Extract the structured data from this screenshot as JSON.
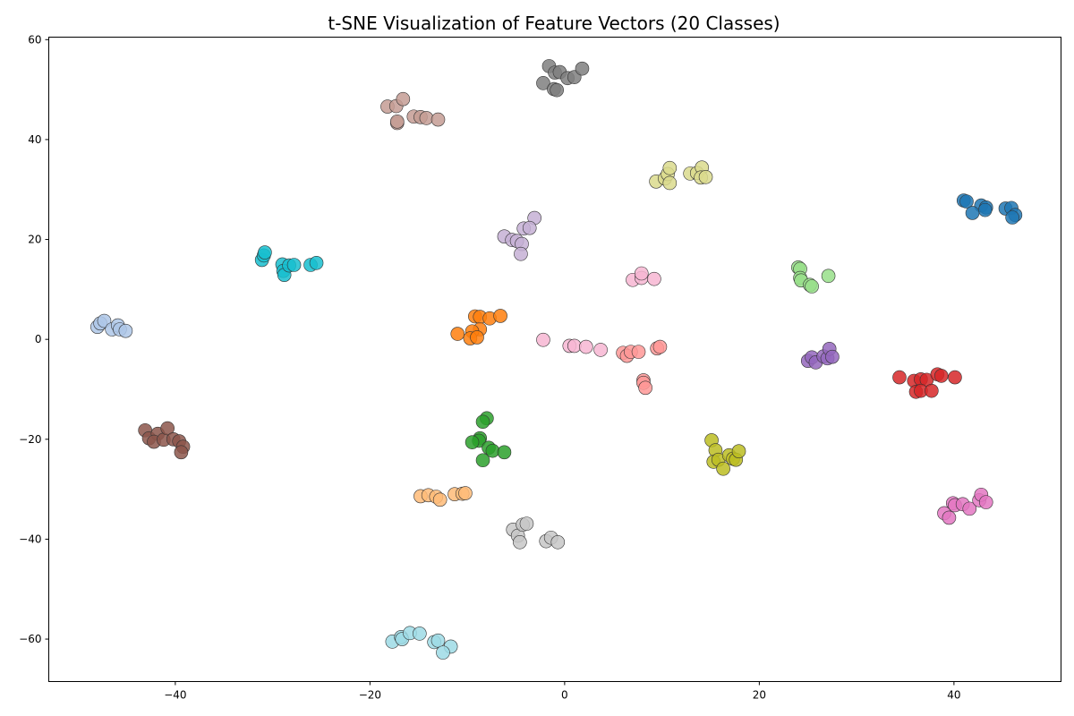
{
  "chart_data": {
    "type": "scatter",
    "title": "t-SNE Visualization of Feature Vectors (20 Classes)",
    "xlabel": "",
    "ylabel": "",
    "xlim": [
      -53,
      51
    ],
    "ylim": [
      -68.5,
      60.5
    ],
    "xticks": [
      -40,
      -20,
      0,
      20,
      40
    ],
    "yticks": [
      -60,
      -40,
      -20,
      0,
      20,
      40,
      60
    ],
    "grid": false,
    "legend": "none",
    "series": [
      {
        "color": "#1f77b4",
        "points": [
          [
            41.0,
            27.8
          ],
          [
            41.3,
            27.6
          ],
          [
            42.8,
            26.8
          ],
          [
            43.3,
            26.4
          ],
          [
            43.2,
            25.9
          ],
          [
            41.9,
            25.3
          ],
          [
            45.3,
            26.2
          ],
          [
            45.9,
            26.3
          ],
          [
            46.3,
            24.9
          ],
          [
            46.0,
            24.4
          ]
        ]
      },
      {
        "color": "#aec7e8",
        "points": [
          [
            -48.0,
            2.5
          ],
          [
            -47.7,
            3.2
          ],
          [
            -47.3,
            3.7
          ],
          [
            -46.5,
            2.0
          ],
          [
            -45.9,
            2.8
          ],
          [
            -45.7,
            2.0
          ],
          [
            -45.1,
            1.7
          ]
        ]
      },
      {
        "color": "#ff7f0e",
        "points": [
          [
            -9.2,
            4.6
          ],
          [
            -8.7,
            4.5
          ],
          [
            -7.7,
            4.2
          ],
          [
            -6.6,
            4.7
          ],
          [
            -8.7,
            2.0
          ],
          [
            -9.5,
            1.6
          ],
          [
            -11.0,
            1.1
          ],
          [
            -9.7,
            0.2
          ],
          [
            -9.0,
            0.4
          ]
        ]
      },
      {
        "color": "#ffbb78",
        "points": [
          [
            -14.8,
            -31.4
          ],
          [
            -14.0,
            -31.2
          ],
          [
            -13.2,
            -31.5
          ],
          [
            -12.8,
            -32.1
          ],
          [
            -11.3,
            -31.0
          ],
          [
            -10.5,
            -30.9
          ],
          [
            -10.2,
            -30.8
          ]
        ]
      },
      {
        "color": "#2ca02c",
        "points": [
          [
            -8.0,
            -15.8
          ],
          [
            -8.4,
            -16.5
          ],
          [
            -8.7,
            -19.8
          ],
          [
            -8.8,
            -20.3
          ],
          [
            -9.5,
            -20.6
          ],
          [
            -7.8,
            -21.7
          ],
          [
            -7.4,
            -22.3
          ],
          [
            -6.2,
            -22.6
          ],
          [
            -8.4,
            -24.2
          ]
        ]
      },
      {
        "color": "#98df8a",
        "points": [
          [
            24.0,
            14.4
          ],
          [
            24.2,
            14.1
          ],
          [
            24.2,
            12.3
          ],
          [
            24.3,
            11.8
          ],
          [
            25.2,
            10.9
          ],
          [
            25.4,
            10.6
          ],
          [
            27.1,
            12.7
          ]
        ]
      },
      {
        "color": "#d62728",
        "points": [
          [
            34.4,
            -7.6
          ],
          [
            35.9,
            -8.3
          ],
          [
            36.6,
            -8.0
          ],
          [
            37.2,
            -8.1
          ],
          [
            38.3,
            -7.0
          ],
          [
            38.7,
            -7.3
          ],
          [
            40.1,
            -7.6
          ],
          [
            36.1,
            -10.5
          ],
          [
            36.6,
            -10.3
          ],
          [
            37.7,
            -10.3
          ]
        ]
      },
      {
        "color": "#ff9896",
        "points": [
          [
            6.0,
            -2.7
          ],
          [
            6.4,
            -3.3
          ],
          [
            6.8,
            -2.5
          ],
          [
            7.6,
            -2.5
          ],
          [
            9.5,
            -1.8
          ],
          [
            9.8,
            -1.5
          ],
          [
            8.1,
            -8.2
          ],
          [
            8.1,
            -8.7
          ],
          [
            8.3,
            -9.7
          ]
        ]
      },
      {
        "color": "#9467bd",
        "points": [
          [
            25.0,
            -4.3
          ],
          [
            25.4,
            -3.6
          ],
          [
            25.8,
            -4.6
          ],
          [
            26.6,
            -3.4
          ],
          [
            27.0,
            -3.8
          ],
          [
            27.2,
            -1.9
          ],
          [
            27.5,
            -3.5
          ]
        ]
      },
      {
        "color": "#c5b0d5",
        "points": [
          [
            -3.1,
            24.3
          ],
          [
            -4.2,
            22.2
          ],
          [
            -3.6,
            22.3
          ],
          [
            -6.2,
            20.6
          ],
          [
            -5.4,
            19.9
          ],
          [
            -4.9,
            19.7
          ],
          [
            -4.4,
            19.1
          ],
          [
            -4.5,
            17.1
          ]
        ]
      },
      {
        "color": "#8c564b",
        "points": [
          [
            -43.1,
            -18.2
          ],
          [
            -42.7,
            -19.8
          ],
          [
            -41.8,
            -18.9
          ],
          [
            -42.2,
            -20.5
          ],
          [
            -41.2,
            -20.1
          ],
          [
            -40.8,
            -17.8
          ],
          [
            -40.2,
            -20.0
          ],
          [
            -39.6,
            -20.4
          ],
          [
            -39.2,
            -21.5
          ],
          [
            -39.4,
            -22.6
          ]
        ]
      },
      {
        "color": "#c49c94",
        "points": [
          [
            -18.2,
            46.6
          ],
          [
            -17.3,
            46.7
          ],
          [
            -16.6,
            48.1
          ],
          [
            -17.2,
            43.3
          ],
          [
            -17.2,
            43.6
          ],
          [
            -15.5,
            44.6
          ],
          [
            -14.8,
            44.5
          ],
          [
            -14.2,
            44.3
          ],
          [
            -13.0,
            44.0
          ]
        ]
      },
      {
        "color": "#e377c2",
        "points": [
          [
            39.0,
            -34.8
          ],
          [
            39.5,
            -35.7
          ],
          [
            39.9,
            -32.8
          ],
          [
            40.1,
            -33.2
          ],
          [
            40.9,
            -33.0
          ],
          [
            41.6,
            -33.9
          ],
          [
            42.6,
            -32.2
          ],
          [
            42.8,
            -31.1
          ],
          [
            43.3,
            -32.6
          ]
        ]
      },
      {
        "color": "#f7b6d2",
        "points": [
          [
            -2.2,
            -0.1
          ],
          [
            0.5,
            -1.3
          ],
          [
            1.0,
            -1.3
          ],
          [
            2.2,
            -1.5
          ],
          [
            3.7,
            -2.1
          ],
          [
            7.0,
            11.9
          ],
          [
            7.9,
            12.3
          ],
          [
            7.9,
            13.2
          ],
          [
            9.2,
            12.1
          ]
        ]
      },
      {
        "color": "#7f7f7f",
        "points": [
          [
            -1.6,
            54.7
          ],
          [
            -1.0,
            53.4
          ],
          [
            -0.5,
            53.5
          ],
          [
            -2.2,
            51.3
          ],
          [
            0.3,
            52.3
          ],
          [
            1.0,
            52.5
          ],
          [
            1.8,
            54.2
          ],
          [
            -1.1,
            50.1
          ],
          [
            -0.8,
            49.9
          ]
        ]
      },
      {
        "color": "#c7c7c7",
        "points": [
          [
            -5.3,
            -38.1
          ],
          [
            -4.8,
            -39.3
          ],
          [
            -4.6,
            -40.6
          ],
          [
            -4.3,
            -37.1
          ],
          [
            -3.9,
            -36.9
          ],
          [
            -1.9,
            -40.4
          ],
          [
            -1.4,
            -39.7
          ],
          [
            -0.7,
            -40.6
          ]
        ]
      },
      {
        "color": "#bcbd22",
        "points": [
          [
            15.1,
            -20.2
          ],
          [
            15.5,
            -22.2
          ],
          [
            15.3,
            -24.5
          ],
          [
            15.8,
            -24.1
          ],
          [
            16.3,
            -25.9
          ],
          [
            16.9,
            -23.2
          ],
          [
            17.3,
            -23.9
          ],
          [
            17.6,
            -24.1
          ],
          [
            17.9,
            -22.4
          ]
        ]
      },
      {
        "color": "#dbdb8d",
        "points": [
          [
            9.4,
            31.6
          ],
          [
            10.3,
            32.2
          ],
          [
            10.6,
            33.1
          ],
          [
            10.8,
            34.3
          ],
          [
            10.8,
            31.3
          ],
          [
            12.9,
            33.2
          ],
          [
            13.6,
            33.3
          ],
          [
            14.1,
            34.4
          ],
          [
            14.0,
            32.4
          ],
          [
            14.5,
            32.5
          ]
        ]
      },
      {
        "color": "#17becf",
        "points": [
          [
            -31.1,
            15.9
          ],
          [
            -30.9,
            16.8
          ],
          [
            -30.8,
            17.4
          ],
          [
            -29.0,
            15.0
          ],
          [
            -28.9,
            13.7
          ],
          [
            -28.8,
            12.9
          ],
          [
            -28.3,
            14.8
          ],
          [
            -27.8,
            14.9
          ],
          [
            -26.1,
            14.9
          ],
          [
            -25.5,
            15.3
          ]
        ]
      },
      {
        "color": "#9edae5",
        "points": [
          [
            -17.7,
            -60.5
          ],
          [
            -16.8,
            -59.6
          ],
          [
            -16.7,
            -60.0
          ],
          [
            -15.9,
            -58.8
          ],
          [
            -14.9,
            -58.9
          ],
          [
            -13.4,
            -60.6
          ],
          [
            -13.0,
            -60.3
          ],
          [
            -11.7,
            -61.5
          ],
          [
            -12.5,
            -62.7
          ]
        ]
      }
    ]
  }
}
